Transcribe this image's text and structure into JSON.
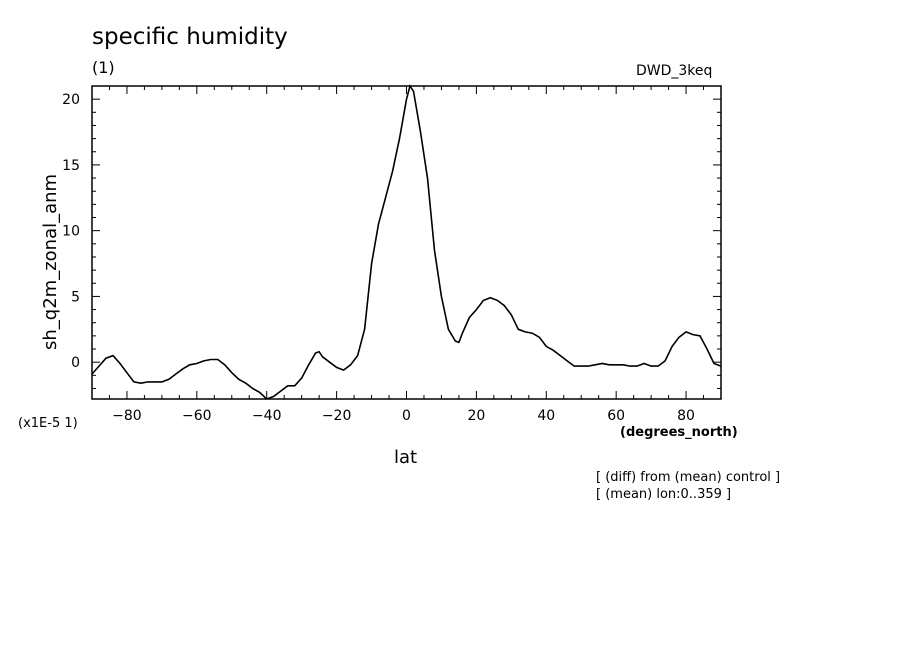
{
  "chart_data": {
    "type": "line",
    "title": "specific humidity",
    "subtitle": "(1)",
    "dataset": "DWD_3keq",
    "xlabel": "lat",
    "x_units": "(degrees_north)",
    "ylabel": "sh_q2m_zonal_anm",
    "y_scale_label": "(x1E-5 1)",
    "notes": [
      "[ (diff) from (mean) control ]",
      "[ (mean) lon:0..359 ]"
    ],
    "xlim": [
      -90,
      90
    ],
    "ylim": [
      -2.8,
      21
    ],
    "x_ticks": [
      -80,
      -60,
      -40,
      -20,
      0,
      20,
      40,
      60,
      80
    ],
    "y_ticks": [
      0,
      5,
      10,
      15,
      20
    ],
    "grid": false,
    "series": [
      {
        "x": [
          -90,
          -88,
          -86,
          -84,
          -82,
          -80,
          -78,
          -76,
          -74,
          -72,
          -70,
          -68,
          -66,
          -64,
          -62,
          -60,
          -58,
          -56,
          -54,
          -52,
          -50,
          -48,
          -46,
          -44,
          -42,
          -40,
          -38,
          -36,
          -34,
          -32,
          -30,
          -28,
          -26,
          -25,
          -24,
          -22,
          -20,
          -18,
          -16,
          -14,
          -12,
          -10,
          -8,
          -6,
          -4,
          -2,
          0,
          1,
          2,
          4,
          6,
          8,
          10,
          12,
          14,
          15,
          16,
          18,
          20,
          22,
          24,
          26,
          28,
          30,
          32,
          34,
          36,
          38,
          40,
          42,
          44,
          46,
          48,
          50,
          52,
          54,
          56,
          58,
          60,
          62,
          64,
          66,
          68,
          70,
          72,
          74,
          76,
          78,
          80,
          82,
          84,
          86,
          88,
          90
        ],
        "values": [
          -0.9,
          -0.3,
          0.3,
          0.5,
          -0.1,
          -0.8,
          -1.5,
          -1.6,
          -1.5,
          -1.5,
          -1.5,
          -1.3,
          -0.9,
          -0.5,
          -0.2,
          -0.1,
          0.1,
          0.2,
          0.2,
          -0.2,
          -0.8,
          -1.3,
          -1.6,
          -2.0,
          -2.3,
          -2.8,
          -2.6,
          -2.2,
          -1.8,
          -1.8,
          -1.2,
          -0.2,
          0.7,
          0.8,
          0.4,
          0.0,
          -0.4,
          -0.6,
          -0.2,
          0.5,
          2.5,
          7.5,
          10.5,
          12.5,
          14.5,
          17.0,
          20.0,
          21.0,
          20.6,
          17.5,
          14.0,
          8.5,
          5.0,
          2.5,
          1.6,
          1.5,
          2.2,
          3.4,
          4.0,
          4.7,
          4.9,
          4.7,
          4.3,
          3.6,
          2.5,
          2.3,
          2.2,
          1.9,
          1.2,
          0.9,
          0.5,
          0.1,
          -0.3,
          -0.3,
          -0.3,
          -0.2,
          -0.1,
          -0.2,
          -0.2,
          -0.2,
          -0.3,
          -0.3,
          -0.1,
          -0.3,
          -0.3,
          0.1,
          1.2,
          1.9,
          2.3,
          2.1,
          2.0,
          1.0,
          -0.1,
          -0.3
        ]
      }
    ]
  }
}
